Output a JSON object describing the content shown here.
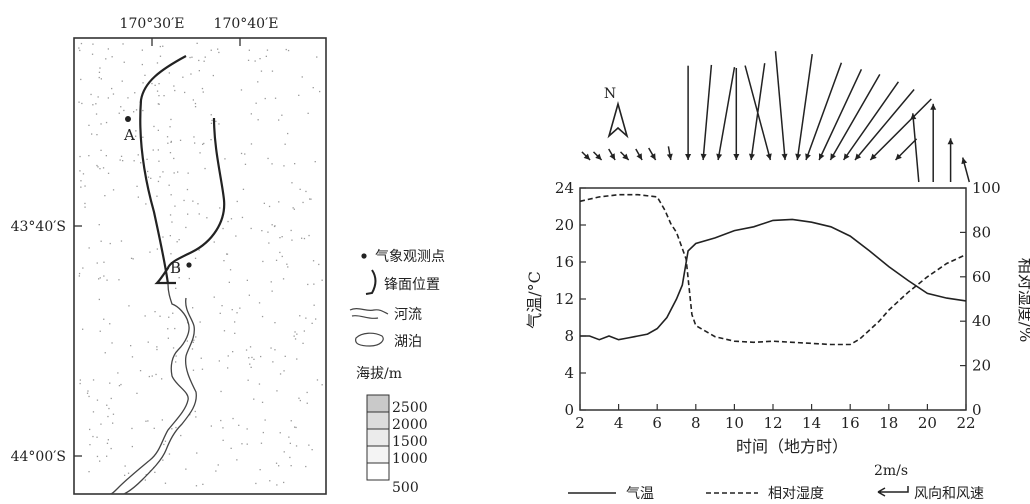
{
  "map": {
    "lon_labels": [
      "170°30′E",
      "170°40′E"
    ],
    "lat_labels": [
      "43°40′S",
      "44°00′S"
    ],
    "point_a": "A",
    "point_b": "B",
    "north": "N"
  },
  "legend": {
    "station": "气象观测点",
    "front": "锋面位置",
    "river": "河流",
    "lake": "湖泊",
    "elev_title": "海拔/m",
    "elev_levels": [
      "2500",
      "2000",
      "1500",
      "1000",
      "500"
    ]
  },
  "chart_data": {
    "type": "line",
    "xlabel": "时间（地方时）",
    "ylabel_left": "气温/°C",
    "ylabel_right": "相对湿度/%",
    "xlim": [
      2,
      22
    ],
    "ylim_left": [
      0,
      24
    ],
    "ylim_right": [
      0,
      100
    ],
    "x_ticks": [
      2,
      4,
      6,
      8,
      10,
      12,
      14,
      16,
      18,
      20,
      22
    ],
    "y_left_ticks": [
      0,
      4,
      8,
      12,
      16,
      20,
      24
    ],
    "y_right_ticks": [
      0,
      20,
      40,
      60,
      80,
      100
    ],
    "series": [
      {
        "name": "气温",
        "style": "solid",
        "points": [
          [
            2,
            8
          ],
          [
            2.5,
            8
          ],
          [
            3,
            7.6
          ],
          [
            3.5,
            8
          ],
          [
            4,
            7.6
          ],
          [
            4.5,
            7.8
          ],
          [
            5,
            8
          ],
          [
            5.5,
            8.2
          ],
          [
            6,
            8.8
          ],
          [
            6.5,
            10
          ],
          [
            7,
            12
          ],
          [
            7.3,
            13.5
          ],
          [
            7.6,
            17.2
          ],
          [
            8,
            18
          ],
          [
            9,
            18.6
          ],
          [
            10,
            19.4
          ],
          [
            11,
            19.8
          ],
          [
            12,
            20.5
          ],
          [
            13,
            20.6
          ],
          [
            14,
            20.3
          ],
          [
            15,
            19.8
          ],
          [
            16,
            18.8
          ],
          [
            17,
            17.2
          ],
          [
            18,
            15.5
          ],
          [
            19,
            14
          ],
          [
            20,
            12.6
          ],
          [
            21,
            12.1
          ],
          [
            22,
            11.8
          ]
        ]
      },
      {
        "name": "相对湿度",
        "style": "dashed",
        "points": [
          [
            2,
            94
          ],
          [
            3,
            96
          ],
          [
            4,
            97
          ],
          [
            5,
            97
          ],
          [
            6,
            96
          ],
          [
            6.4,
            90
          ],
          [
            6.7,
            84
          ],
          [
            7,
            80
          ],
          [
            7.5,
            68
          ],
          [
            7.8,
            43
          ],
          [
            8,
            38
          ],
          [
            9,
            33
          ],
          [
            10,
            31
          ],
          [
            11,
            30.5
          ],
          [
            12,
            31
          ],
          [
            13,
            30.5
          ],
          [
            14,
            30
          ],
          [
            15,
            29.5
          ],
          [
            16,
            29.5
          ],
          [
            16.5,
            32
          ],
          [
            17,
            36
          ],
          [
            17.5,
            40
          ],
          [
            18,
            45
          ],
          [
            19,
            53
          ],
          [
            20,
            60
          ],
          [
            21,
            66
          ],
          [
            22,
            70
          ]
        ]
      },
      {
        "name": "风向和风速",
        "style": "arrows",
        "scale_label": "2m/s",
        "points": [
          [
            2.5,
            1,
            135
          ],
          [
            3.1,
            1,
            135
          ],
          [
            3.8,
            1.1,
            150
          ],
          [
            4.5,
            1,
            135
          ],
          [
            5.2,
            1.1,
            150
          ],
          [
            5.9,
            1.2,
            150
          ],
          [
            6.7,
            1.2,
            170
          ],
          [
            7.6,
            8.2,
            180
          ],
          [
            8.4,
            8.3,
            185
          ],
          [
            9.2,
            8.2,
            190
          ],
          [
            10.1,
            8,
            180
          ],
          [
            10.9,
            8.5,
            188
          ],
          [
            11.8,
            8.5,
            165
          ],
          [
            12.6,
            9.5,
            175
          ],
          [
            13.3,
            9.3,
            188
          ],
          [
            13.8,
            9,
            200
          ],
          [
            14.5,
            8.7,
            205
          ],
          [
            15.1,
            8.6,
            210
          ],
          [
            15.8,
            8.3,
            215
          ],
          [
            16.4,
            8,
            220
          ],
          [
            17.2,
            7.5,
            225
          ],
          [
            18.4,
            2.6,
            225
          ],
          [
            19.4,
            6,
            355
          ],
          [
            20.3,
            6.8,
            0
          ],
          [
            21.2,
            3.8,
            0
          ],
          [
            22,
            2.2,
            345
          ]
        ]
      }
    ]
  }
}
